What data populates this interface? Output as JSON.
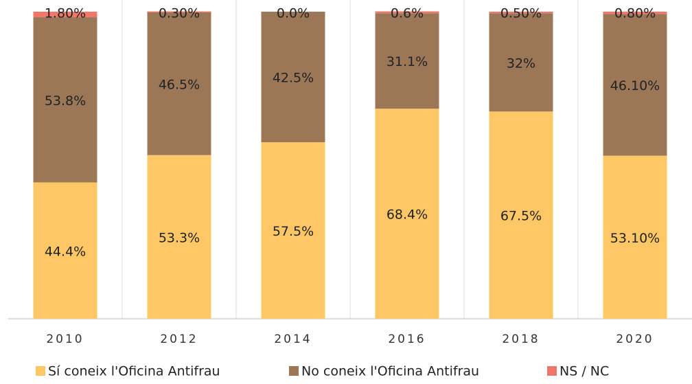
{
  "chart_data": {
    "type": "stacked_bar",
    "categories": [
      "2010",
      "2012",
      "2014",
      "2016",
      "2018",
      "2020"
    ],
    "series": [
      {
        "name": "Sí coneix l'Oficina Antifrau",
        "color": "#fdc765",
        "values": [
          44.4,
          53.3,
          57.5,
          68.4,
          67.5,
          53.1
        ],
        "value_labels": [
          "44.4%",
          "53.3%",
          "57.5%",
          "68.4%",
          "67.5%",
          "53.10%"
        ]
      },
      {
        "name": "No coneix l'Oficina Antifrau",
        "color": "#9b7758",
        "values": [
          53.8,
          46.5,
          42.5,
          31.1,
          32,
          46.1
        ],
        "value_labels": [
          "53.8%",
          "46.5%",
          "42.5%",
          "31.1%",
          "32%",
          "46.10%"
        ]
      },
      {
        "name": "NS / NC",
        "color": "#f0786a",
        "values": [
          1.8,
          0.3,
          0.0,
          0.6,
          0.5,
          0.8
        ],
        "value_labels": [
          "1.80%",
          "0.30%",
          "0.0%",
          "0.6%",
          "0.50%",
          "0.80%"
        ]
      }
    ],
    "ylim": [
      0,
      100
    ]
  }
}
